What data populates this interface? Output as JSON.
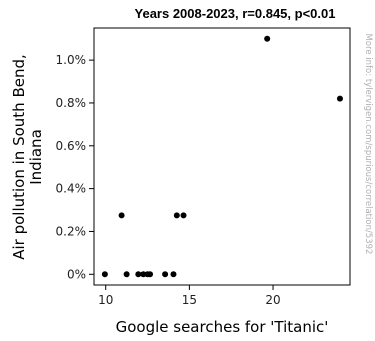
{
  "chart_data": {
    "type": "scatter",
    "title": "Years 2008-2023, r=0.845, p<0.01",
    "xlabel": "Google searches for 'Titanic'",
    "ylabel_lines": [
      "Air pollution in South Bend,",
      "Indiana"
    ],
    "xlim": [
      9.3,
      24.6
    ],
    "ylim": [
      -0.05,
      1.15
    ],
    "x_ticks": [
      10,
      15,
      20
    ],
    "x_tick_labels": [
      "10",
      "15",
      "20"
    ],
    "y_ticks": [
      0,
      0.2,
      0.4,
      0.6,
      0.8,
      1.0
    ],
    "y_tick_labels": [
      "0%",
      "0.2%",
      "0.4%",
      "0.6%",
      "0.8%",
      "1.0%"
    ],
    "grid": false,
    "points": [
      {
        "x": 9.95,
        "y": 0.0
      },
      {
        "x": 10.95,
        "y": 0.275
      },
      {
        "x": 11.25,
        "y": 0.0
      },
      {
        "x": 11.95,
        "y": 0.0
      },
      {
        "x": 12.25,
        "y": 0.0
      },
      {
        "x": 12.5,
        "y": 0.0
      },
      {
        "x": 12.65,
        "y": 0.0
      },
      {
        "x": 13.55,
        "y": 0.0
      },
      {
        "x": 14.05,
        "y": 0.0
      },
      {
        "x": 14.25,
        "y": 0.275
      },
      {
        "x": 14.65,
        "y": 0.275
      },
      {
        "x": 19.65,
        "y": 1.1
      },
      {
        "x": 24.0,
        "y": 0.82
      }
    ],
    "marker_color": "#000000"
  },
  "watermark": "More info: tylervigen.com/spurious/correlation/5392"
}
